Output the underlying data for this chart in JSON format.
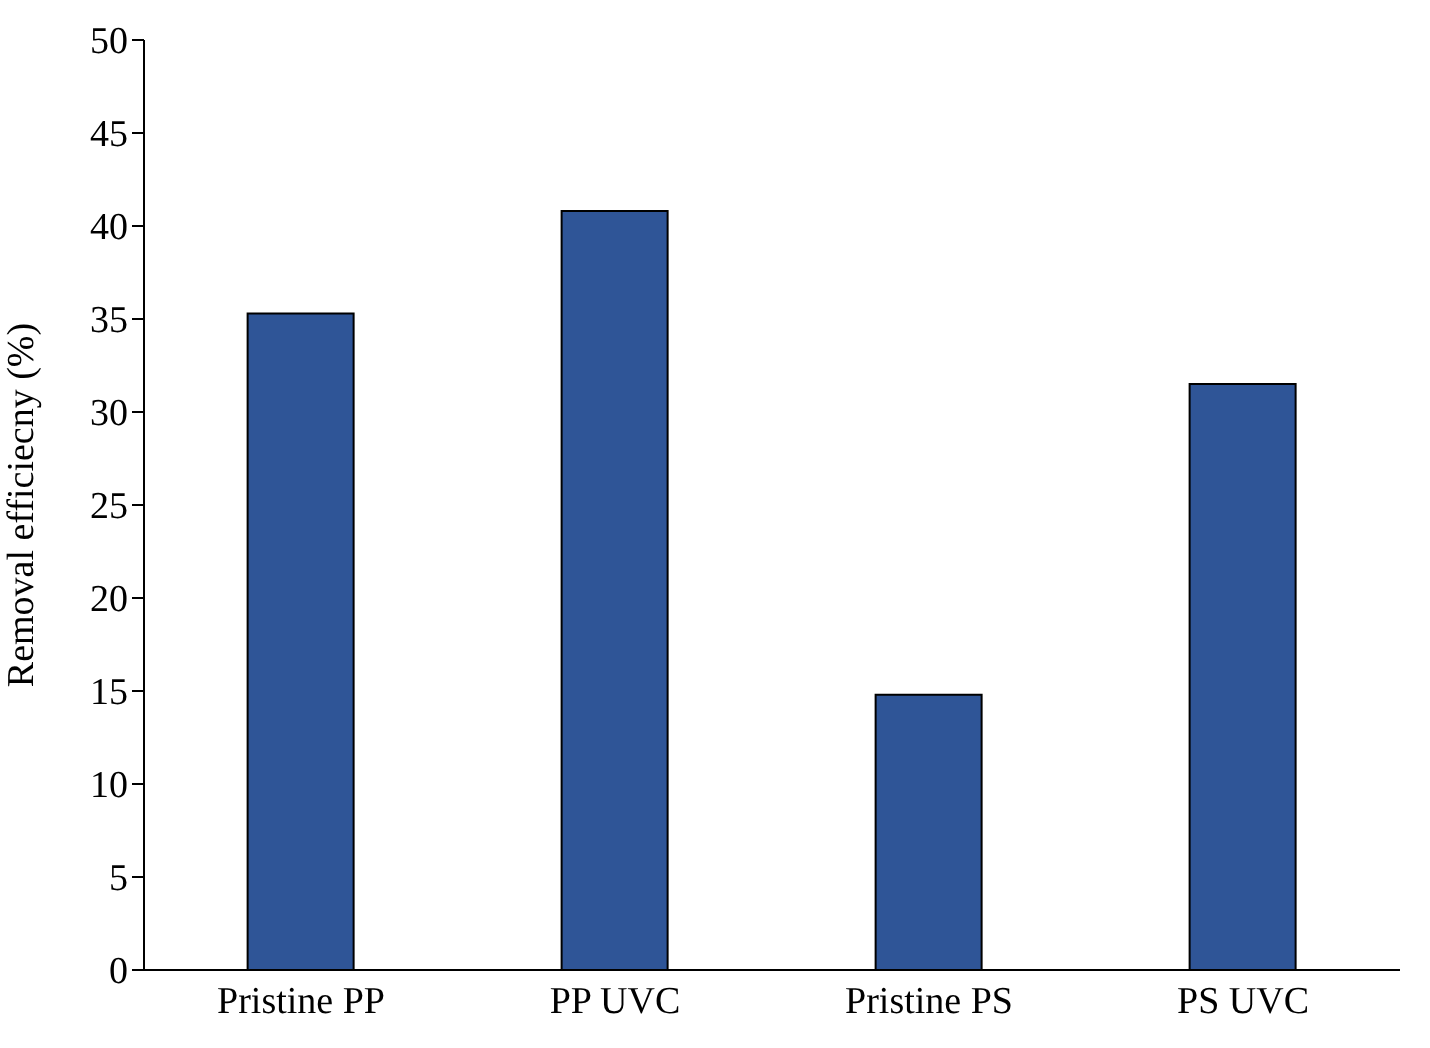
{
  "chart_data": {
    "type": "bar",
    "ylabel": "Removal efficiecny (%)",
    "categories": [
      "Pristine PP",
      "PP UVC",
      "Pristine PS",
      "PS UVC"
    ],
    "values": [
      35.3,
      40.8,
      14.8,
      31.5
    ],
    "color": "#2f5597",
    "ylim": [
      0,
      50
    ],
    "yticks": [
      0,
      5,
      10,
      15,
      20,
      25,
      30,
      35,
      40,
      45,
      50
    ],
    "grid": false,
    "legend": false
  }
}
